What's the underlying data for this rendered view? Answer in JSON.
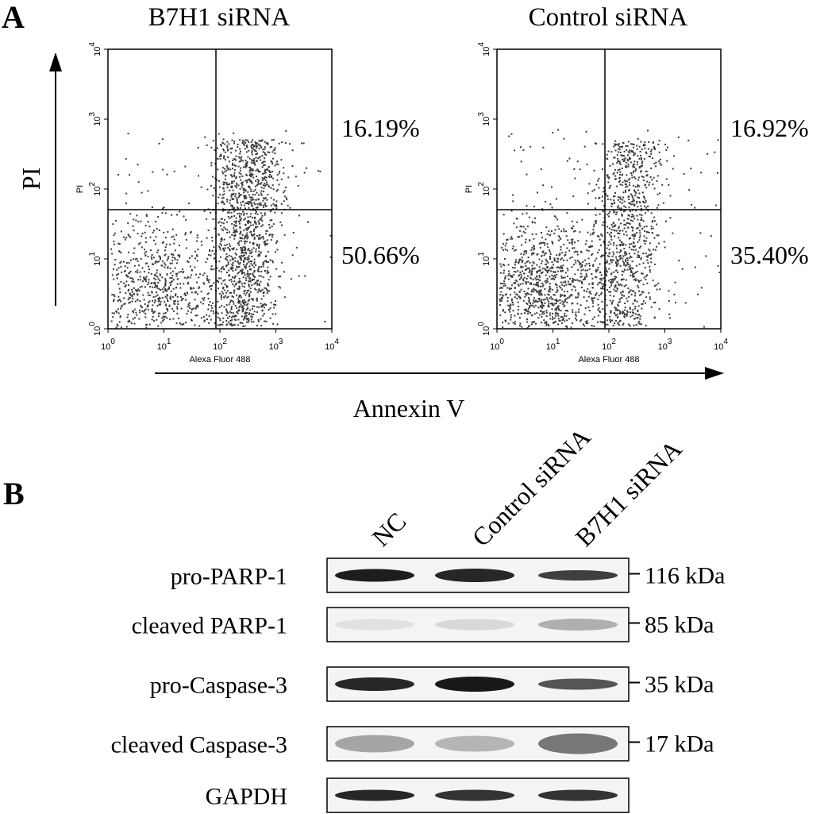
{
  "panel_a": {
    "label": "A",
    "x_axis_label": "Annexin V",
    "y_axis_label": "PI",
    "tick_base": "10",
    "tick_exponents": [
      "0",
      "1",
      "2",
      "3",
      "4"
    ],
    "plots": [
      {
        "title": "B7H1 siRNA",
        "x_label": "Alexa Fluor 488",
        "y_label": "PI",
        "upper_right": "16.19%",
        "lower_right": "50.66%"
      },
      {
        "title": "Control siRNA",
        "x_label": "Alexa Fluor 488",
        "y_label": "PI",
        "upper_right": "16.92%",
        "lower_right": "35.40%"
      }
    ]
  },
  "panel_b": {
    "label": "B",
    "lanes": [
      "NC",
      "Control siRNA",
      "B7H1 siRNA"
    ],
    "rows": [
      {
        "name": "pro-PARP-1",
        "size": "116 kDa"
      },
      {
        "name": "cleaved PARP-1",
        "size": "85 kDa"
      },
      {
        "name": "pro-Caspase-3",
        "size": "35 kDa"
      },
      {
        "name": "cleaved Caspase-3",
        "size": "17 kDa"
      },
      {
        "name": "GAPDH"
      }
    ]
  }
}
